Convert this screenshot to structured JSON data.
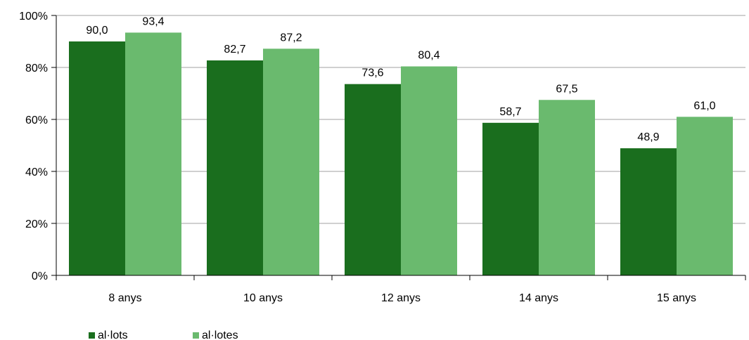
{
  "chart_data": {
    "type": "bar",
    "categories": [
      "8 anys",
      "10 anys",
      "12 anys",
      "14 anys",
      "15 anys"
    ],
    "series": [
      {
        "name": "al·lots",
        "color": "#1a6e1e",
        "values": [
          90.0,
          82.7,
          73.6,
          58.7,
          48.9
        ],
        "labels": [
          "90,0",
          "82,7",
          "73,6",
          "58,7",
          "48,9"
        ]
      },
      {
        "name": "al·lotes",
        "color": "#6aba6e",
        "values": [
          93.4,
          87.2,
          80.4,
          67.5,
          61.0
        ],
        "labels": [
          "93,4",
          "87,2",
          "80,4",
          "67,5",
          "61,0"
        ]
      }
    ],
    "ylim": [
      0,
      100
    ],
    "yticks": [
      0,
      20,
      40,
      60,
      80,
      100
    ],
    "ytick_labels": [
      "0%",
      "20%",
      "40%",
      "60%",
      "80%",
      "100%"
    ],
    "grid": true,
    "gridline_color": "#c0c0c0",
    "legend_position": "bottom-left"
  }
}
